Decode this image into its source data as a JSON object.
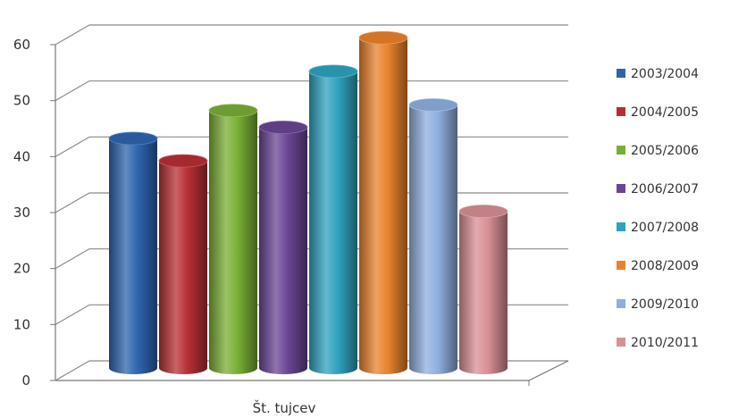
{
  "chart_data": {
    "type": "bar",
    "style": "3d-cylinder",
    "categories": [
      "Št. tujcev"
    ],
    "series": [
      {
        "name": "2003/2004",
        "values": [
          41
        ],
        "color": "#2E64AE"
      },
      {
        "name": "2004/2005",
        "values": [
          37
        ],
        "color": "#B72F35"
      },
      {
        "name": "2005/2006",
        "values": [
          46
        ],
        "color": "#79AE35"
      },
      {
        "name": "2006/2007",
        "values": [
          43
        ],
        "color": "#6A4594"
      },
      {
        "name": "2007/2008",
        "values": [
          53
        ],
        "color": "#2FA2BF"
      },
      {
        "name": "2008/2009",
        "values": [
          59
        ],
        "color": "#E9822C"
      },
      {
        "name": "2009/2010",
        "values": [
          47
        ],
        "color": "#8FAEDF"
      },
      {
        "name": "2010/2011",
        "values": [
          28
        ],
        "color": "#D88F95"
      }
    ],
    "ylim": [
      0,
      60
    ],
    "yticks": [
      0,
      10,
      20,
      30,
      40,
      50,
      60
    ],
    "grid": true,
    "legend": "right"
  }
}
